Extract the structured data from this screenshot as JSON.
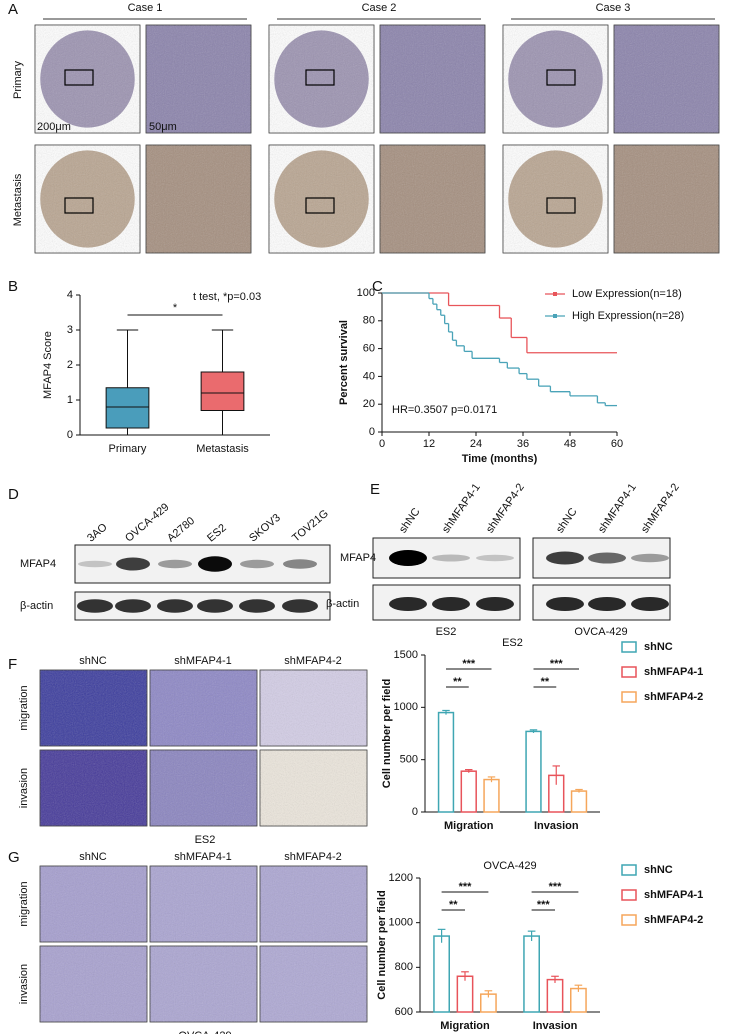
{
  "figure": {
    "panel_labels": [
      "A",
      "B",
      "C",
      "D",
      "E",
      "F",
      "G"
    ],
    "a": {
      "cases": [
        "Case 1",
        "Case 2",
        "Case 3"
      ],
      "rows": [
        "Primary",
        "Metastasis"
      ],
      "scale_bars": [
        "200μm",
        "50μm"
      ]
    },
    "d": {
      "lanes": [
        "3AO",
        "OVCA-429",
        "A2780",
        "ES2",
        "SKOV3",
        "TOV21G"
      ],
      "rows": [
        "MFAP4",
        "β-actin"
      ]
    },
    "e": {
      "lanes": [
        "shNC",
        "shMFAP4-1",
        "shMFAP4-2",
        "shNC",
        "shMFAP4-1",
        "shMFAP4-2"
      ],
      "rows": [
        "MFAP4",
        "β-actin"
      ],
      "cell_lines": [
        "ES2",
        "OVCA-429"
      ]
    },
    "f": {
      "columns": [
        "shNC",
        "shMFAP4-1",
        "shMFAP4-2"
      ],
      "rows": [
        "migration",
        "invasion"
      ],
      "caption": "ES2"
    },
    "g": {
      "columns": [
        "shNC",
        "shMFAP4-1",
        "shMFAP4-2"
      ],
      "rows": [
        "migration",
        "invasion"
      ],
      "caption": "OVCA-429"
    }
  },
  "chart_data": [
    {
      "type": "box",
      "ylabel": "MFAP4 Score",
      "categories": [
        "Primary",
        "Metastasis"
      ],
      "colors": [
        "#4a9dbb",
        "#ea6b6e"
      ],
      "stats": {
        "min": [
          0,
          0
        ],
        "q1": [
          0.2,
          0.7
        ],
        "median": [
          0.8,
          1.2
        ],
        "q3": [
          1.35,
          1.8
        ],
        "max": [
          3,
          3
        ]
      },
      "ylim": [
        0,
        4
      ],
      "yticks": [
        0,
        1,
        2,
        3,
        4
      ],
      "annotations": [
        "*",
        "t test, *p=0.03"
      ]
    },
    {
      "type": "survival",
      "xlabel": "Time (months)",
      "ylabel": "Percent survival",
      "series": [
        {
          "name": "Low Expression(n=18)",
          "color": "#e8555a",
          "x": [
            0,
            17,
            30,
            33,
            37
          ],
          "values": [
            100,
            91,
            82,
            68,
            57
          ]
        },
        {
          "name": "High Expression(n=28)",
          "color": "#4aa3b8",
          "x": [
            0,
            12,
            13,
            14,
            15,
            16,
            17,
            18,
            19,
            21,
            23,
            30,
            32,
            35,
            37,
            40,
            43,
            48,
            55,
            57
          ],
          "values": [
            100,
            96,
            92,
            88,
            84,
            78,
            72,
            66,
            62,
            58,
            53,
            50,
            46,
            42,
            38,
            33,
            29,
            26,
            21,
            19
          ]
        }
      ],
      "xlim": [
        0,
        60
      ],
      "xticks": [
        0,
        12,
        24,
        36,
        48,
        60
      ],
      "ylim": [
        0,
        100
      ],
      "yticks": [
        0,
        20,
        40,
        60,
        80,
        100
      ],
      "annotation": "HR=0.3507 p=0.0171"
    },
    {
      "type": "bar",
      "title": "ES2",
      "ylabel": "Cell number per field",
      "categories": [
        "Migration",
        "Invasion"
      ],
      "series": [
        {
          "name": "shNC",
          "color": "#3fa6b3",
          "values": [
            950,
            770
          ],
          "errors": [
            20,
            15
          ]
        },
        {
          "name": "shMFAP4-1",
          "color": "#e8535a",
          "values": [
            390,
            350
          ],
          "errors": [
            15,
            90
          ]
        },
        {
          "name": "shMFAP4-2",
          "color": "#f5a65b",
          "values": [
            310,
            200
          ],
          "errors": [
            25,
            15
          ]
        }
      ],
      "ylim": [
        0,
        1500
      ],
      "yticks": [
        0,
        500,
        1000,
        1500
      ],
      "annotations": [
        "**",
        "***",
        "**",
        "***"
      ]
    },
    {
      "type": "bar",
      "title": "OVCA-429",
      "ylabel": "Cell number per field",
      "categories": [
        "Migration",
        "Invasion"
      ],
      "series": [
        {
          "name": "shNC",
          "color": "#3fa6b3",
          "values": [
            940,
            940
          ],
          "errors": [
            30,
            22
          ]
        },
        {
          "name": "shMFAP4-1",
          "color": "#e8535a",
          "values": [
            760,
            745
          ],
          "errors": [
            20,
            15
          ]
        },
        {
          "name": "shMFAP4-2",
          "color": "#f5a65b",
          "values": [
            680,
            705
          ],
          "errors": [
            15,
            15
          ]
        }
      ],
      "ylim": [
        600,
        1200
      ],
      "yticks": [
        600,
        800,
        1000,
        1200
      ],
      "annotations": [
        "**",
        "***",
        "***",
        "***"
      ]
    }
  ]
}
